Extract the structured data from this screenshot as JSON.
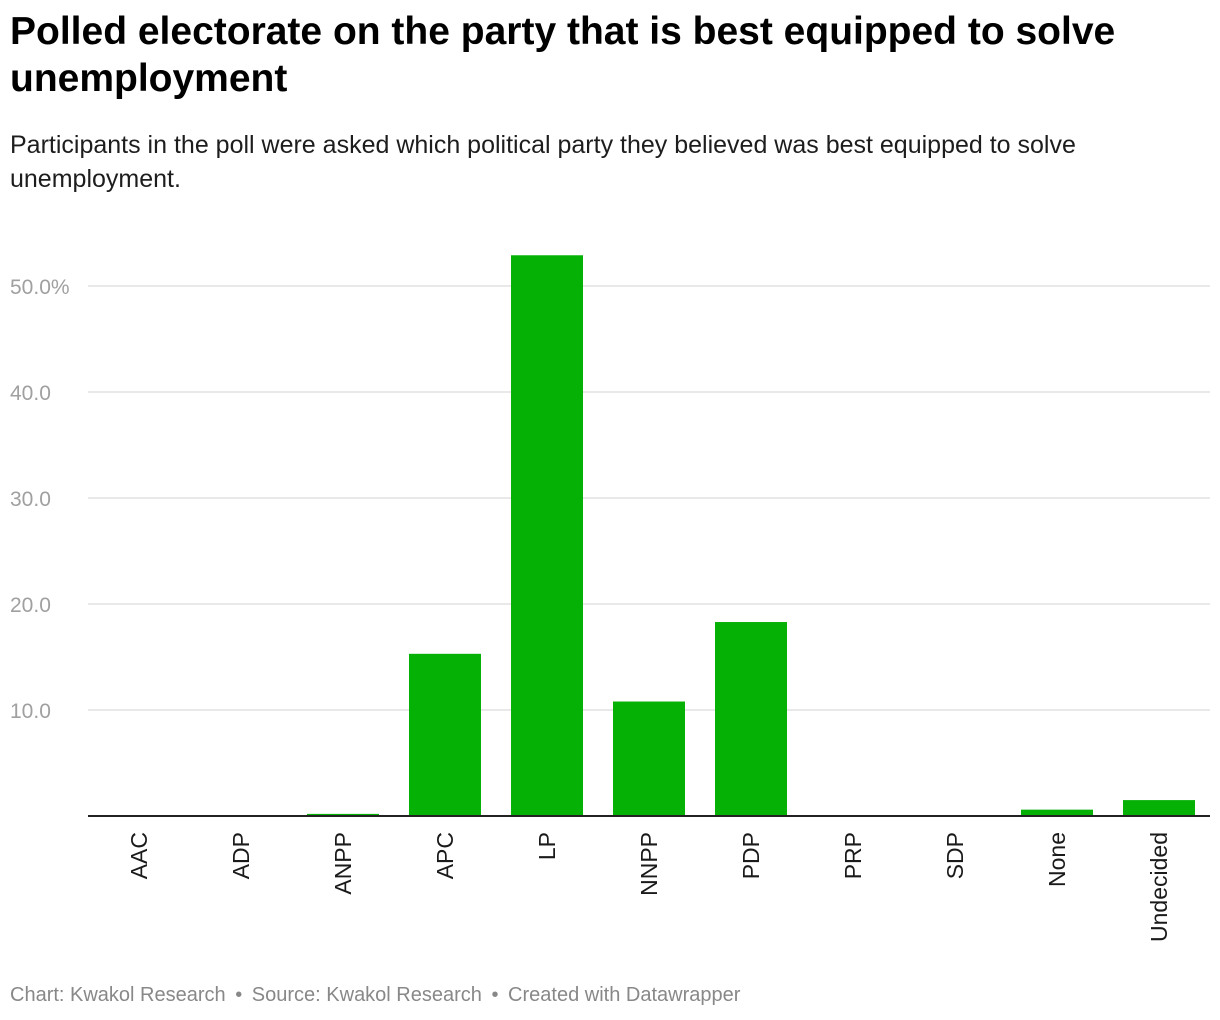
{
  "header": {
    "title": "Polled electorate on the party that is best equipped to solve unemployment",
    "subtitle": "Participants in the poll were asked which political party they believed was best equipped to solve unemployment."
  },
  "footer": {
    "chart_credit": "Chart: Kwakol Research",
    "source": "Source: Kwakol Research",
    "created_with": "Created with Datawrapper",
    "separator": "•"
  },
  "colors": {
    "bar": "#06b106",
    "grid": "#e2e2e2",
    "axis": "#222222",
    "tick_text": "#a0a0a0",
    "category_text": "#1a1a1a"
  },
  "chart_data": {
    "type": "bar",
    "title": "Polled electorate on the party that is best equipped to solve unemployment",
    "xlabel": "",
    "ylabel": "",
    "categories": [
      "AAC",
      "ADP",
      "ANPP",
      "APC",
      "LP",
      "NNPP",
      "PDP",
      "PRP",
      "SDP",
      "None",
      "Undecided"
    ],
    "values": [
      0,
      0,
      0.2,
      15.3,
      52.9,
      10.8,
      18.3,
      0,
      0,
      0.6,
      1.5
    ],
    "ylim": [
      0,
      53
    ],
    "yticks": [
      10,
      20,
      30,
      40,
      50
    ],
    "ytick_labels": [
      "10.0",
      "20.0",
      "30.0",
      "40.0",
      "50.0%"
    ],
    "grid": true,
    "legend": "none"
  }
}
